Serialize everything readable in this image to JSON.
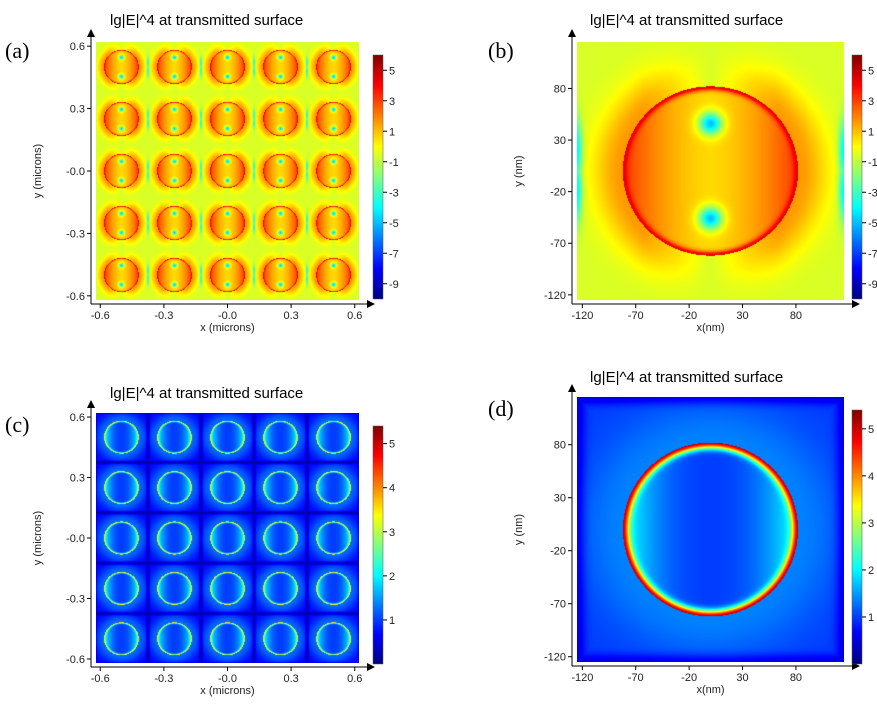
{
  "colors": {
    "jet": [
      "#00007f",
      "#0000ff",
      "#007fff",
      "#00ffff",
      "#7fff7f",
      "#ffff00",
      "#ff7f00",
      "#ff0000",
      "#7f0000"
    ]
  },
  "chart_data": [
    {
      "type": "heatmap",
      "panel_label": "(a)",
      "title": "lg|E|^4 at transmitted surface",
      "xlabel": "x (microns)",
      "ylabel": "y (microns)",
      "xlim": [
        -0.62,
        0.62
      ],
      "ylim": [
        -0.62,
        0.62
      ],
      "xticks": [
        -0.6,
        -0.3,
        0.0,
        0.3,
        0.6
      ],
      "xtick_labels": [
        "-0.6",
        "-0.3",
        "-0.0",
        "0.3",
        "0.6"
      ],
      "yticks": [
        0.6,
        0.3,
        0.0,
        -0.3,
        -0.6
      ],
      "ytick_labels": [
        "0.6",
        "0.3",
        "-0.0",
        "-0.3",
        "-0.6"
      ],
      "colorbar": {
        "min": -10,
        "max": 6,
        "ticks": [
          5,
          3,
          1,
          -1,
          -3,
          -5,
          -7,
          -9
        ],
        "tick_labels": [
          "5",
          "3",
          "1",
          "-1",
          "-3",
          "-5",
          "-7",
          "-9"
        ]
      },
      "pattern": {
        "style": "ring",
        "period": 0.25,
        "radius": 0.082,
        "ring_value": 4.5,
        "background_value": -0.6,
        "hot_spot_value": -5
      }
    },
    {
      "type": "heatmap",
      "panel_label": "(b)",
      "title": "lg|E|^4 at transmitted surface",
      "xlabel": "x(nm)",
      "ylabel": "y (nm)",
      "xlim": [
        -125,
        125
      ],
      "ylim": [
        -125,
        125
      ],
      "xticks": [
        -120,
        -70,
        -20,
        30,
        80
      ],
      "xtick_labels": [
        "-120",
        "-70",
        "-20",
        "30",
        "80"
      ],
      "yticks": [
        80,
        30,
        -20,
        -70,
        -120
      ],
      "ytick_labels": [
        "80",
        "30",
        "-20",
        "-70",
        "-120"
      ],
      "colorbar": {
        "min": -10,
        "max": 6,
        "ticks": [
          5,
          3,
          1,
          -1,
          -3,
          -5,
          -7,
          -9
        ],
        "tick_labels": [
          "5",
          "3",
          "1",
          "-1",
          "-3",
          "-5",
          "-7",
          "-9"
        ]
      },
      "pattern": {
        "style": "ring",
        "period": 250,
        "radius": 82,
        "ring_value": 4.5,
        "background_value": -0.6,
        "hot_spot_value": -5
      }
    },
    {
      "type": "heatmap",
      "panel_label": "(c)",
      "title": "lg|E|^4 at transmitted surface",
      "xlabel": "x (microns)",
      "ylabel": "y (microns)",
      "xlim": [
        -0.62,
        0.62
      ],
      "ylim": [
        -0.62,
        0.62
      ],
      "xticks": [
        -0.6,
        -0.3,
        0.0,
        0.3,
        0.6
      ],
      "xtick_labels": [
        "-0.6",
        "-0.3",
        "-0.0",
        "0.3",
        "0.6"
      ],
      "yticks": [
        0.6,
        0.3,
        0.0,
        -0.3,
        -0.6
      ],
      "ytick_labels": [
        "0.6",
        "0.3",
        "-0.0",
        "-0.3",
        "-0.6"
      ],
      "colorbar": {
        "min": 0,
        "max": 5.4,
        "ticks": [
          5,
          4,
          3,
          2,
          1
        ],
        "tick_labels": [
          "5",
          "4",
          "3",
          "2",
          "1"
        ]
      },
      "pattern": {
        "style": "cell",
        "period": 0.25,
        "radius": 0.082,
        "ring_value": 3.6,
        "background_value": 0.7,
        "hot_spot_value": 1.2
      }
    },
    {
      "type": "heatmap",
      "panel_label": "(d)",
      "title": "lg|E|^4 at transmitted surface",
      "xlabel": "x(nm)",
      "ylabel": "y (nm)",
      "xlim": [
        -125,
        125
      ],
      "ylim": [
        -125,
        125
      ],
      "xticks": [
        -120,
        -70,
        -20,
        30,
        80
      ],
      "xtick_labels": [
        "-120",
        "-70",
        "-20",
        "30",
        "80"
      ],
      "yticks": [
        80,
        30,
        -20,
        -70,
        -120
      ],
      "ytick_labels": [
        "80",
        "30",
        "-20",
        "-70",
        "-120"
      ],
      "colorbar": {
        "min": 0,
        "max": 5.4,
        "ticks": [
          5,
          4,
          3,
          2,
          1
        ],
        "tick_labels": [
          "5",
          "4",
          "3",
          "2",
          "1"
        ]
      },
      "pattern": {
        "style": "cell",
        "period": 250,
        "radius": 82,
        "ring_value": 5.0,
        "background_value": 1.0,
        "hot_spot_value": 1.2
      }
    }
  ]
}
